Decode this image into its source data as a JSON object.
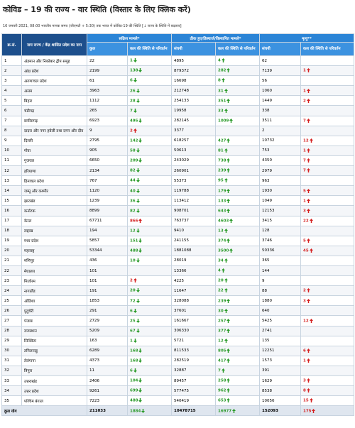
{
  "header": {
    "title": "कोविड – 19 की राज्य - वार स्थिति (विस्तार के लिए क्लिक करें)",
    "subtitle": "16 जनवरी 2021, 08:00 भारतीय मानक समय (जीएमटी + 5:30) तक भारत में कोविड-19 की स्थिति [↓ राज्य के स्थिति में बदलाव]"
  },
  "table": {
    "groups": [
      "सक्रिय मामले*",
      "ठीक हुए/डिस्चार्ज/विस्थापित मामले*",
      "मृत्यु**"
    ],
    "columns": [
      "क्र.सं.",
      "नाम राज्य / केंद्र शासित प्रदेश का नाम",
      "कुल",
      "कल की स्थिति से परिवर्तन",
      "संचयी",
      "कल की स्थिति से परिवर्तन",
      "संचयी",
      "कल की स्थिति से परिवर्तन"
    ],
    "rows": [
      [
        "1",
        "अंडमान और निकोबार द्वीप समूह",
        "22",
        [
          "1",
          "down",
          "green"
        ],
        "4895",
        [
          "4",
          "up",
          "green"
        ],
        "62",
        null
      ],
      [
        "2",
        "आंध्र प्रदेश",
        "2199",
        [
          "138",
          "down",
          "green"
        ],
        "879372",
        [
          "282",
          "up",
          "green"
        ],
        "7139",
        [
          "1",
          "up",
          "red"
        ]
      ],
      [
        "3",
        "अरुणाचल प्रदेश",
        "61",
        [
          "6",
          "down",
          "green"
        ],
        "16698",
        [
          "8",
          "up",
          "green"
        ],
        "56",
        null
      ],
      [
        "4",
        "असम",
        "3963",
        [
          "26",
          "down",
          "green"
        ],
        "212748",
        [
          "31",
          "up",
          "green"
        ],
        "1060",
        [
          "1",
          "up",
          "red"
        ]
      ],
      [
        "5",
        "बिहार",
        "1112",
        [
          "28",
          "down",
          "green"
        ],
        "254133",
        [
          "351",
          "up",
          "green"
        ],
        "1449",
        [
          "2",
          "up",
          "red"
        ]
      ],
      [
        "6",
        "चंडीगढ़",
        "265",
        [
          "7",
          "down",
          "green"
        ],
        "19958",
        [
          "33",
          "up",
          "green"
        ],
        "338",
        null
      ],
      [
        "7",
        "छत्तीसगढ़",
        "6923",
        [
          "495",
          "down",
          "green"
        ],
        "282145",
        [
          "1009",
          "up",
          "green"
        ],
        "3511",
        [
          "7",
          "up",
          "red"
        ]
      ],
      [
        "8",
        "दादरा और नगर हवेली तथा दमन और दीव",
        "9",
        [
          "2",
          "up",
          "red"
        ],
        "3377",
        null,
        "2",
        null
      ],
      [
        "9",
        "दिल्ली",
        "2795",
        [
          "142",
          "down",
          "green"
        ],
        "618257",
        [
          "427",
          "up",
          "green"
        ],
        "10732",
        [
          "12",
          "up",
          "red"
        ]
      ],
      [
        "10",
        "गोवा",
        "905",
        [
          "58",
          "down",
          "green"
        ],
        "50613",
        [
          "81",
          "up",
          "green"
        ],
        "753",
        [
          "1",
          "up",
          "red"
        ]
      ],
      [
        "11",
        "गुजरात",
        "6650",
        [
          "209",
          "down",
          "green"
        ],
        "243029",
        [
          "738",
          "up",
          "green"
        ],
        "4350",
        [
          "7",
          "up",
          "red"
        ]
      ],
      [
        "12",
        "हरियाणा",
        "2134",
        [
          "82",
          "down",
          "green"
        ],
        "260901",
        [
          "239",
          "up",
          "green"
        ],
        "2979",
        [
          "7",
          "up",
          "red"
        ]
      ],
      [
        "13",
        "हिमाचल प्रदेश",
        "767",
        [
          "44",
          "down",
          "green"
        ],
        "55373",
        [
          "95",
          "up",
          "green"
        ],
        "963",
        null
      ],
      [
        "14",
        "जम्मू और कश्मीर",
        "1120",
        [
          "40",
          "down",
          "green"
        ],
        "119788",
        [
          "179",
          "up",
          "green"
        ],
        "1930",
        [
          "5",
          "up",
          "red"
        ]
      ],
      [
        "15",
        "झारखंड",
        "1239",
        [
          "36",
          "down",
          "green"
        ],
        "113412",
        [
          "133",
          "up",
          "green"
        ],
        "1049",
        [
          "1",
          "up",
          "red"
        ]
      ],
      [
        "16",
        "कर्नाटक",
        "8899",
        [
          "82",
          "down",
          "green"
        ],
        "908701",
        [
          "643",
          "up",
          "green"
        ],
        "12153",
        [
          "3",
          "up",
          "red"
        ]
      ],
      [
        "17",
        "केरल",
        "67711",
        [
          "866",
          "up",
          "red"
        ],
        "763737",
        [
          "4603",
          "up",
          "green"
        ],
        "3415",
        [
          "22",
          "up",
          "red"
        ]
      ],
      [
        "18",
        "लद्दाख",
        "194",
        [
          "12",
          "down",
          "green"
        ],
        "9410",
        [
          "13",
          "up",
          "green"
        ],
        "128",
        null
      ],
      [
        "19",
        "मध्य प्रदेश",
        "5857",
        [
          "151",
          "down",
          "green"
        ],
        "241155",
        [
          "374",
          "up",
          "green"
        ],
        "3746",
        [
          "5",
          "up",
          "red"
        ]
      ],
      [
        "20",
        "महाराष्ट्र",
        "53344",
        [
          "488",
          "down",
          "green"
        ],
        "1881088",
        [
          "3500",
          "up",
          "green"
        ],
        "50336",
        [
          "45",
          "up",
          "red"
        ]
      ],
      [
        "21",
        "मणिपुर",
        "436",
        [
          "10",
          "down",
          "green"
        ],
        "28019",
        [
          "34",
          "up",
          "green"
        ],
        "365",
        null
      ],
      [
        "22",
        "मेघालय",
        "101",
        null,
        "13366",
        [
          "4",
          "up",
          "green"
        ],
        "144",
        null
      ],
      [
        "23",
        "मिजोरम",
        "101",
        [
          "2",
          "up",
          "red"
        ],
        "4225",
        [
          "20",
          "up",
          "green"
        ],
        "9",
        null
      ],
      [
        "24",
        "नागालैंड",
        "191",
        [
          "20",
          "down",
          "green"
        ],
        "11647",
        [
          "22",
          "up",
          "green"
        ],
        "88",
        [
          "2",
          "up",
          "red"
        ]
      ],
      [
        "25",
        "ओडिशा",
        "1853",
        [
          "72",
          "down",
          "green"
        ],
        "328088",
        [
          "239",
          "up",
          "green"
        ],
        "1880",
        [
          "3",
          "up",
          "red"
        ]
      ],
      [
        "26",
        "पुदुचेरी",
        "291",
        [
          "6",
          "down",
          "green"
        ],
        "37601",
        [
          "30",
          "up",
          "green"
        ],
        "640",
        null
      ],
      [
        "27",
        "पंजाब",
        "2729",
        [
          "25",
          "down",
          "green"
        ],
        "161667",
        [
          "257",
          "up",
          "green"
        ],
        "5425",
        [
          "12",
          "up",
          "red"
        ]
      ],
      [
        "28",
        "राजस्थान",
        "5209",
        [
          "67",
          "down",
          "green"
        ],
        "306330",
        [
          "377",
          "up",
          "green"
        ],
        "2741",
        null
      ],
      [
        "29",
        "सिक्किम",
        "163",
        [
          "1",
          "down",
          "green"
        ],
        "5721",
        [
          "12",
          "up",
          "green"
        ],
        "135",
        null
      ],
      [
        "30",
        "तमिलनाडु",
        "6289",
        [
          "168",
          "down",
          "green"
        ],
        "811533",
        [
          "805",
          "up",
          "green"
        ],
        "12251",
        [
          "6",
          "up",
          "red"
        ]
      ],
      [
        "31",
        "तेलंगाना",
        "4373",
        [
          "168",
          "down",
          "green"
        ],
        "282519",
        [
          "417",
          "up",
          "green"
        ],
        "1573",
        [
          "1",
          "up",
          "red"
        ]
      ],
      [
        "32",
        "त्रिपुरा",
        "11",
        [
          "6",
          "down",
          "green"
        ],
        "32887",
        [
          "7",
          "up",
          "green"
        ],
        "391",
        null
      ],
      [
        "33",
        "उत्तराखंड",
        "2406",
        [
          "104",
          "down",
          "green"
        ],
        "89457",
        [
          "258",
          "up",
          "green"
        ],
        "1629",
        [
          "3",
          "up",
          "red"
        ]
      ],
      [
        "34",
        "उत्तर प्रदेश",
        "9261",
        [
          "699",
          "down",
          "green"
        ],
        "577475",
        [
          "962",
          "up",
          "green"
        ],
        "8538",
        [
          "8",
          "up",
          "red"
        ]
      ],
      [
        "35",
        "पश्चिम बंगाल",
        "7223",
        [
          "488",
          "down",
          "green"
        ],
        "540419",
        [
          "653",
          "up",
          "green"
        ],
        "10056",
        [
          "15",
          "up",
          "red"
        ]
      ]
    ],
    "total": [
      "कुल योग",
      "211033",
      [
        "1884",
        "down",
        "green"
      ],
      "10478715",
      [
        "16977",
        "up",
        "green"
      ],
      "152093",
      [
        "175",
        "up",
        "red"
      ]
    ]
  }
}
